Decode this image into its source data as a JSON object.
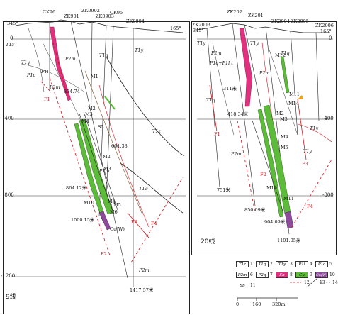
{
  "sections": [
    {
      "title": "9线",
      "drill_holes": [
        "CK96",
        "ZK901",
        "ZK0902",
        "ZK0903",
        "CK95",
        "ZK0904"
      ],
      "azimuth_left": "345°",
      "azimuth_right": "165°",
      "strata": [
        "T1z",
        "T1y",
        "P2m",
        "P2m",
        "P2m",
        "T1q",
        "T1q",
        "P1c",
        "P1l",
        "T1z",
        "P2m",
        "T1y"
      ],
      "veins": [
        "M1",
        "M2",
        "M3",
        "M4",
        "S5",
        "M2",
        "M3",
        "M4",
        "M5",
        "M6",
        "M10",
        "Cu(W)"
      ],
      "faults": [
        "F1",
        "F2",
        "F3",
        "F4"
      ],
      "depths": [
        "334.74",
        "601.33",
        "864.12米",
        "1000.15米",
        "1417.57米"
      ],
      "elevations": [
        "0",
        "-400",
        "-800",
        "-1200"
      ]
    },
    {
      "title": "20线",
      "drill_holes": [
        "ZK2003",
        "ZK202",
        "ZK201",
        "ZK2004",
        "ZK2005",
        "ZK2006"
      ],
      "azimuth_left": "345°",
      "azimuth_right": "165°",
      "strata": [
        "T1y",
        "P2m",
        "P1c+P1l t",
        "T1y",
        "T1q",
        "P2m",
        "T1q",
        "P2m",
        "T1y",
        "T1y"
      ],
      "veins": [
        "M12",
        "M11",
        "M14",
        "M2",
        "M3",
        "M4",
        "M5",
        "M10",
        "M11"
      ],
      "faults": [
        "F1",
        "F2",
        "F3",
        "F4"
      ],
      "depths": [
        "311米",
        "418.34米",
        "751米",
        "850.09米",
        "904.09米",
        "1101.05米"
      ],
      "elevations": [
        "0",
        "-400",
        "-800"
      ]
    }
  ],
  "legend": [
    {
      "code": "T1z",
      "num": "1"
    },
    {
      "code": "T1q",
      "num": "2"
    },
    {
      "code": "T1y",
      "num": "3"
    },
    {
      "code": "P1l",
      "num": "4"
    },
    {
      "code": "P1c",
      "num": "5"
    },
    {
      "code": "P2m",
      "num": "6"
    },
    {
      "code": "P2q",
      "num": "7"
    },
    {
      "code": "Sb",
      "num": "8",
      "color": "#e0307e"
    },
    {
      "code": "Cu",
      "num": "9",
      "color": "#5dbb3a"
    },
    {
      "code": "Cu(W)",
      "num": "10",
      "color": "#8e4b9b"
    },
    {
      "code": "Sb",
      "num": "11"
    },
    {
      "code": "",
      "num": "12"
    },
    {
      "code": "",
      "num": "13"
    },
    {
      "code": "",
      "num": "14"
    }
  ],
  "scale": {
    "ticks": [
      "0",
      "160",
      "320m"
    ]
  },
  "colors": {
    "sb": "#e0307e",
    "cu": "#5dbb3a",
    "cuw": "#8e4b9b",
    "fault": "#d0141c",
    "line": "#222222"
  }
}
